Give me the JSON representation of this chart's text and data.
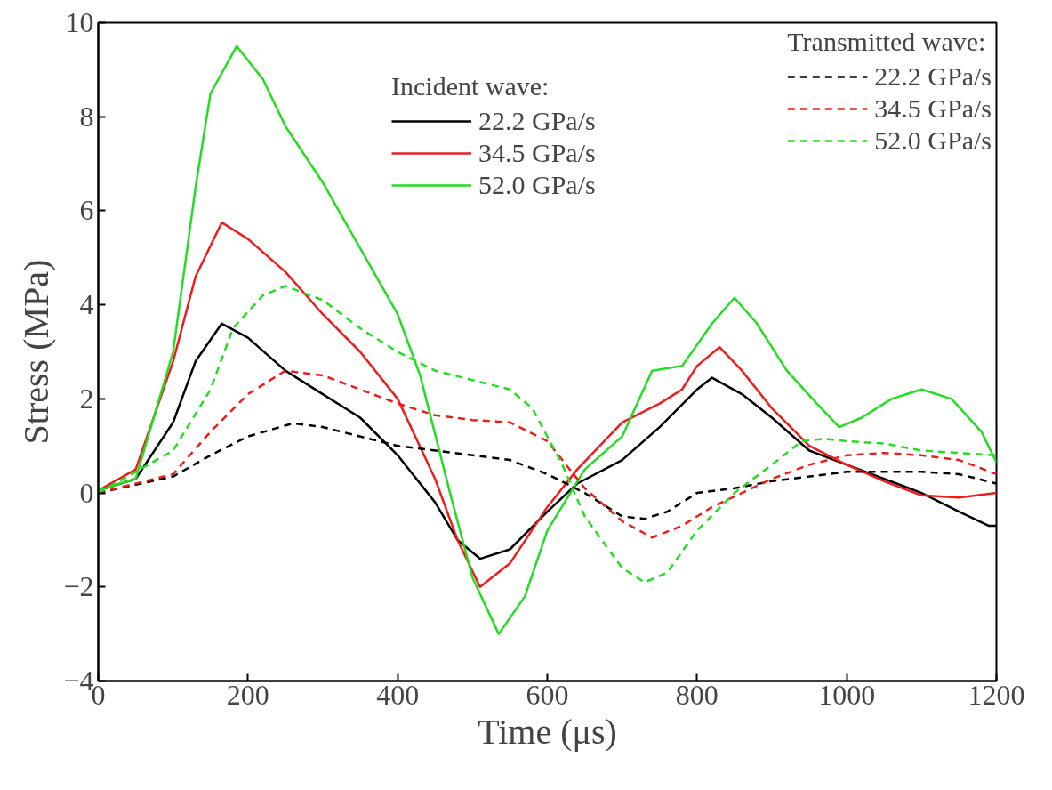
{
  "chart_data": {
    "type": "line",
    "xlabel": "Time (μs)",
    "ylabel": "Stress (MPa)",
    "annotations": [
      "Incident wave:",
      "Transmitted wave:"
    ],
    "xlim": [
      0,
      1200
    ],
    "ylim": [
      -4,
      10
    ],
    "xticks": [
      0,
      200,
      400,
      600,
      800,
      1000,
      1200
    ],
    "yticks": [
      -4,
      -2,
      0,
      2,
      4,
      6,
      8,
      10
    ],
    "grid": false,
    "legend": "top right",
    "series": [
      {
        "name": "22.2 GPa/s",
        "color": "#000000",
        "line_style": "solid",
        "x": [
          0,
          50,
          100,
          130,
          165,
          200,
          250,
          300,
          350,
          400,
          450,
          480,
          510,
          550,
          600,
          640,
          700,
          750,
          800,
          820,
          860,
          900,
          950,
          1000,
          1050,
          1100,
          1150,
          1190,
          1200
        ],
        "values": [
          0.05,
          0.3,
          1.5,
          2.8,
          3.6,
          3.3,
          2.6,
          2.1,
          1.6,
          0.8,
          -0.2,
          -1.0,
          -1.4,
          -1.2,
          -0.4,
          0.2,
          0.7,
          1.4,
          2.2,
          2.45,
          2.1,
          1.6,
          0.9,
          0.6,
          0.3,
          0.0,
          -0.4,
          -0.7,
          -0.7
        ]
      },
      {
        "name": "34.5 GPa/s",
        "color": "#ee1c1c",
        "line_style": "solid",
        "x": [
          0,
          50,
          100,
          130,
          165,
          200,
          250,
          300,
          350,
          400,
          450,
          480,
          510,
          550,
          600,
          640,
          700,
          750,
          780,
          800,
          830,
          860,
          900,
          950,
          1000,
          1050,
          1100,
          1150,
          1200
        ],
        "values": [
          0.05,
          0.5,
          2.8,
          4.6,
          5.75,
          5.4,
          4.7,
          3.8,
          3.0,
          2.0,
          0.3,
          -1.0,
          -2.0,
          -1.5,
          -0.3,
          0.5,
          1.5,
          1.9,
          2.2,
          2.7,
          3.1,
          2.6,
          1.8,
          1.0,
          0.6,
          0.25,
          -0.05,
          -0.1,
          0.0
        ]
      },
      {
        "name": "52.0 GPa/s",
        "color": "#22dd22",
        "line_style": "solid",
        "x": [
          0,
          50,
          100,
          130,
          150,
          185,
          220,
          250,
          300,
          350,
          400,
          430,
          470,
          500,
          535,
          570,
          600,
          650,
          700,
          740,
          780,
          820,
          850,
          880,
          920,
          960,
          990,
          1020,
          1060,
          1100,
          1140,
          1180,
          1200
        ],
        "values": [
          0.05,
          0.3,
          3.0,
          6.5,
          8.5,
          9.5,
          8.8,
          7.8,
          6.6,
          5.2,
          3.8,
          2.5,
          0.0,
          -1.8,
          -3.0,
          -2.2,
          -0.8,
          0.5,
          1.2,
          2.6,
          2.7,
          3.6,
          4.15,
          3.6,
          2.6,
          1.9,
          1.4,
          1.6,
          2.0,
          2.2,
          2.0,
          1.3,
          0.65
        ]
      },
      {
        "name": "22.2 GPa/s",
        "color": "#000000",
        "line_style": "dashed",
        "x": [
          0,
          100,
          150,
          200,
          260,
          300,
          400,
          500,
          550,
          600,
          650,
          700,
          730,
          760,
          800,
          850,
          900,
          1000,
          1050,
          1100,
          1150,
          1200
        ],
        "values": [
          0,
          0.35,
          0.8,
          1.2,
          1.48,
          1.4,
          1.0,
          0.8,
          0.7,
          0.4,
          0.0,
          -0.5,
          -0.55,
          -0.4,
          0.0,
          0.1,
          0.25,
          0.45,
          0.45,
          0.45,
          0.4,
          0.2
        ]
      },
      {
        "name": "34.5 GPa/s",
        "color": "#ee1c1c",
        "line_style": "dashed",
        "x": [
          0,
          100,
          150,
          200,
          250,
          300,
          350,
          400,
          450,
          500,
          550,
          600,
          650,
          700,
          740,
          780,
          820,
          860,
          900,
          950,
          1000,
          1050,
          1100,
          1150,
          1200
        ],
        "values": [
          0,
          0.4,
          1.3,
          2.1,
          2.6,
          2.5,
          2.2,
          1.9,
          1.65,
          1.55,
          1.5,
          1.1,
          0.1,
          -0.6,
          -0.95,
          -0.7,
          -0.3,
          0.0,
          0.3,
          0.6,
          0.8,
          0.85,
          0.8,
          0.7,
          0.4
        ]
      },
      {
        "name": "52.0 GPa/s",
        "color": "#22dd22",
        "line_style": "dashed",
        "x": [
          0,
          100,
          150,
          180,
          220,
          250,
          300,
          350,
          400,
          450,
          500,
          550,
          580,
          620,
          650,
          700,
          730,
          760,
          800,
          850,
          900,
          940,
          970,
          1000,
          1050,
          1100,
          1150,
          1200
        ],
        "values": [
          0,
          0.9,
          2.2,
          3.5,
          4.2,
          4.4,
          4.1,
          3.5,
          3.0,
          2.6,
          2.4,
          2.2,
          1.8,
          0.6,
          -0.5,
          -1.6,
          -1.9,
          -1.7,
          -0.8,
          0.0,
          0.6,
          1.1,
          1.15,
          1.1,
          1.05,
          0.9,
          0.85,
          0.8
        ]
      }
    ]
  }
}
